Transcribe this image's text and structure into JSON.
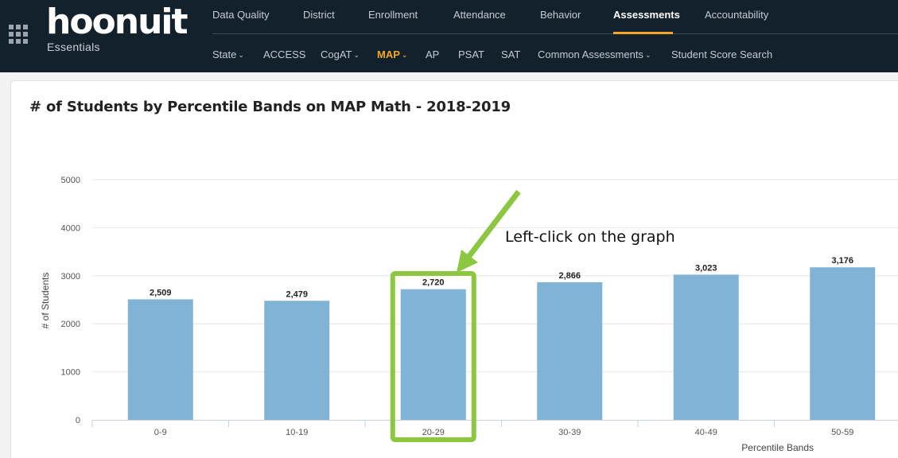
{
  "header": {
    "logo": "hoonuit",
    "logo_sub": "Essentials",
    "primary_nav": [
      {
        "label": "Data Quality",
        "active": false
      },
      {
        "label": "District",
        "active": false
      },
      {
        "label": "Enrollment",
        "active": false
      },
      {
        "label": "Attendance",
        "active": false
      },
      {
        "label": "Behavior",
        "active": false
      },
      {
        "label": "Assessments",
        "active": true
      },
      {
        "label": "Accountability",
        "active": false
      }
    ],
    "secondary_nav": [
      {
        "label": "State",
        "dropdown": true,
        "active": false
      },
      {
        "label": "ACCESS",
        "dropdown": false,
        "active": false
      },
      {
        "label": "CogAT",
        "dropdown": true,
        "active": false
      },
      {
        "label": "MAP",
        "dropdown": true,
        "active": true
      },
      {
        "label": "AP",
        "dropdown": false,
        "active": false
      },
      {
        "label": "PSAT",
        "dropdown": false,
        "active": false
      },
      {
        "label": "SAT",
        "dropdown": false,
        "active": false
      },
      {
        "label": "Common Assessments",
        "dropdown": true,
        "active": false
      },
      {
        "label": "Student Score Search",
        "dropdown": false,
        "active": false
      }
    ]
  },
  "colors": {
    "nav_bg": "#12212b",
    "accent": "#f5a623",
    "bar": "#80b3d6",
    "highlight": "#8dc63f"
  },
  "annotation": {
    "text": "Left-click on the graph",
    "highlighted_category": "20-29"
  },
  "chart_data": {
    "type": "bar",
    "title": "# of Students by Percentile Bands on MAP Math - 2018-2019",
    "xlabel": "Percentile Bands",
    "ylabel": "# of Students",
    "categories": [
      "0-9",
      "10-19",
      "20-29",
      "30-39",
      "40-49",
      "50-59"
    ],
    "values": [
      2509,
      2479,
      2720,
      2866,
      3023,
      3176
    ],
    "value_labels": [
      "2,509",
      "2,479",
      "2,720",
      "2,866",
      "3,023",
      "3,176"
    ],
    "yticks": [
      0,
      1000,
      2000,
      3000,
      4000,
      5000
    ],
    "ylim": [
      0,
      5000
    ],
    "grid": true
  }
}
